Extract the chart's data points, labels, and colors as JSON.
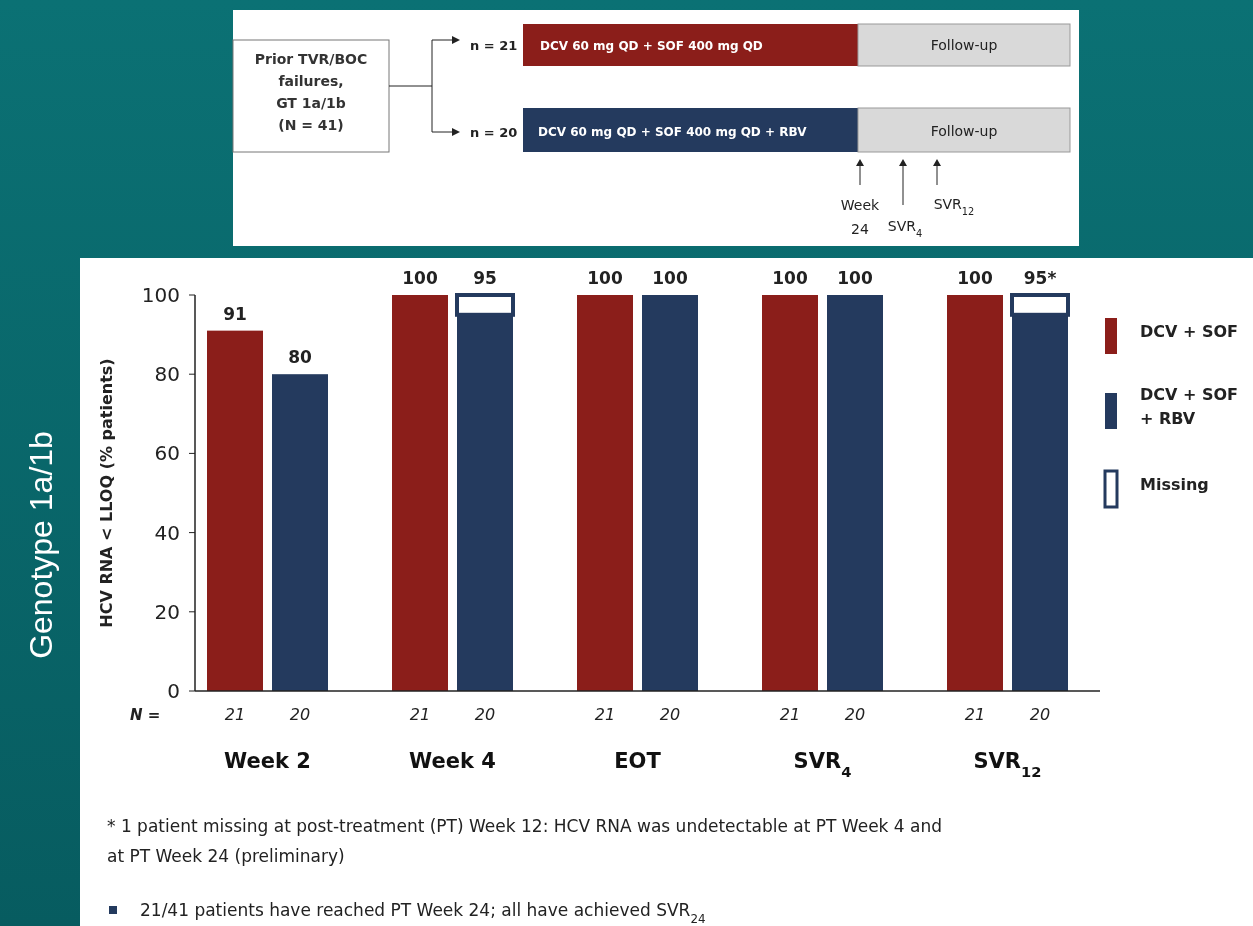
{
  "chart_data": {
    "type": "bar",
    "ylabel": "HCV RNA < LLOQ  (% patients)",
    "categories": [
      "Week 2",
      "Week 4",
      "EOT",
      "SVR$_{4}$",
      "SVR$_{12}$"
    ],
    "series": [
      {
        "name": "DCV +  SOF",
        "color": "#8b1e1a",
        "values": [
          91,
          100,
          100,
          100,
          100
        ],
        "value_labels": [
          "91",
          "100",
          "100",
          "100",
          "100"
        ]
      },
      {
        "name": "DCV + SOF + RBV",
        "color": "#243a5e",
        "values": [
          80,
          95,
          100,
          100,
          95
        ],
        "value_labels": [
          "80",
          "95",
          "100",
          "100",
          "95*"
        ]
      },
      {
        "name": "Missing",
        "color": "#ffffff",
        "values": [
          null,
          5,
          null,
          null,
          5
        ],
        "base": [
          null,
          95,
          null,
          null,
          95
        ]
      }
    ],
    "ylim": [
      0,
      100
    ],
    "yticks": [
      0,
      20,
      40,
      60,
      80,
      100
    ],
    "grid": false,
    "legend": "right",
    "annotations": [
      "Prior TVR/BOC",
      "failures,",
      "GT 1a/1b",
      "(N = 41)",
      "n = 21",
      "DCV 60 mg QD + SOF 400 mg QD",
      "Follow-up",
      "n = 20",
      "DCV 60 mg QD + SOF 400 mg QD + RBV",
      "Follow-up",
      "Week",
      "24",
      "SVR$_{4}$",
      "SVR$_{12}$",
      "Genotype 1a/1b",
      "N =",
      "21",
      "20",
      "21",
      "20",
      "21",
      "20",
      "21",
      "20",
      "21",
      "20",
      "* 1 patient missing at post-treatment (PT) Week 12: HCV RNA was undetectable at PT Week 4 and",
      "at PT Week 24 (preliminary)",
      "21/41 patients have reached PT Week 24; all have achieved SVR$_{24}$"
    ]
  }
}
